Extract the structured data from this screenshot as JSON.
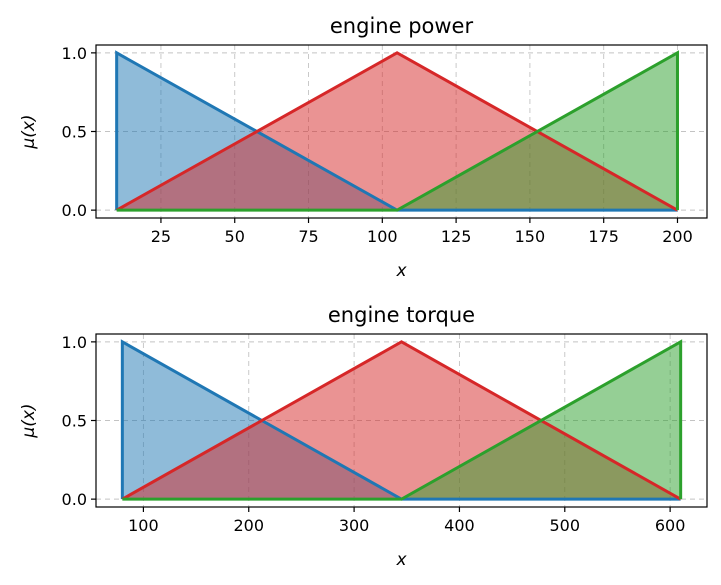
{
  "chart_data": [
    {
      "type": "area",
      "title": "engine power",
      "xlabel": "x",
      "ylabel": "μ(x)",
      "xlim": [
        3,
        210
      ],
      "ylim": [
        -0.05,
        1.05
      ],
      "xticks": [
        25,
        50,
        75,
        100,
        125,
        150,
        175,
        200
      ],
      "yticks": [
        "0.0",
        "0.5",
        "1.0"
      ],
      "grid": true,
      "series": [
        {
          "color": "#1f77b4",
          "fill": "#1f77b4",
          "points": [
            [
              10,
              0
            ],
            [
              10,
              1
            ],
            [
              105,
              0
            ],
            [
              200,
              0
            ]
          ]
        },
        {
          "color": "#d62728",
          "fill": "#d62728",
          "points": [
            [
              10,
              0
            ],
            [
              105,
              1
            ],
            [
              200,
              0
            ]
          ]
        },
        {
          "color": "#2ca02c",
          "fill": "#2ca02c",
          "points": [
            [
              10,
              0
            ],
            [
              105,
              0
            ],
            [
              200,
              1
            ],
            [
              200,
              0
            ]
          ]
        }
      ]
    },
    {
      "type": "area",
      "title": "engine torque",
      "xlabel": "x",
      "ylabel": "μ(x)",
      "xlim": [
        55,
        635
      ],
      "ylim": [
        -0.05,
        1.05
      ],
      "xticks": [
        100,
        200,
        300,
        400,
        500,
        600
      ],
      "yticks": [
        "0.0",
        "0.5",
        "1.0"
      ],
      "grid": true,
      "series": [
        {
          "color": "#1f77b4",
          "fill": "#1f77b4",
          "points": [
            [
              80,
              0
            ],
            [
              80,
              1
            ],
            [
              345,
              0
            ],
            [
              610,
              0
            ]
          ]
        },
        {
          "color": "#d62728",
          "fill": "#d62728",
          "points": [
            [
              80,
              0
            ],
            [
              345,
              1
            ],
            [
              610,
              0
            ]
          ]
        },
        {
          "color": "#2ca02c",
          "fill": "#2ca02c",
          "points": [
            [
              80,
              0
            ],
            [
              345,
              0
            ],
            [
              610,
              1
            ],
            [
              610,
              0
            ]
          ]
        }
      ]
    }
  ]
}
